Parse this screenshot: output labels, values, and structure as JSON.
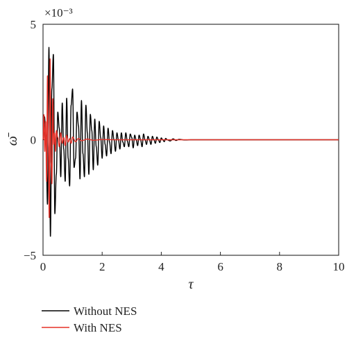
{
  "chart_data": {
    "type": "line",
    "scale_label": "×10⁻³",
    "xlabel": "τ",
    "ylabel": "ω̄",
    "xlim": [
      0,
      10
    ],
    "ylim": [
      -5,
      5
    ],
    "xticks": [
      "0",
      "2",
      "4",
      "6",
      "8",
      "10"
    ],
    "yticks": [
      "5",
      "0",
      "−5"
    ],
    "legend_position": "below",
    "series": [
      {
        "name": "Without NES",
        "color": "#000000",
        "description": "damped oscillation, dominant period about 0.2",
        "values": [
          [
            0.0,
            0.0
          ],
          [
            0.05,
            1.0
          ],
          [
            0.1,
            0.2
          ],
          [
            0.15,
            -2.8
          ],
          [
            0.2,
            4.0
          ],
          [
            0.25,
            -4.2
          ],
          [
            0.3,
            2.2
          ],
          [
            0.35,
            3.7
          ],
          [
            0.4,
            -3.2
          ],
          [
            0.45,
            -1.5
          ],
          [
            0.5,
            1.2
          ],
          [
            0.55,
            0.5
          ],
          [
            0.6,
            -1.6
          ],
          [
            0.65,
            1.6
          ],
          [
            0.7,
            -0.4
          ],
          [
            0.75,
            -1.8
          ],
          [
            0.8,
            1.8
          ],
          [
            0.85,
            -0.8
          ],
          [
            0.9,
            -2.0
          ],
          [
            0.95,
            1.5
          ],
          [
            1.0,
            2.2
          ],
          [
            1.05,
            -1.2
          ],
          [
            1.1,
            -0.8
          ],
          [
            1.15,
            1.2
          ],
          [
            1.2,
            0.6
          ],
          [
            1.25,
            -1.7
          ],
          [
            1.3,
            1.7
          ],
          [
            1.35,
            -0.6
          ],
          [
            1.4,
            -1.6
          ],
          [
            1.45,
            1.5
          ],
          [
            1.5,
            0.3
          ],
          [
            1.55,
            -1.5
          ],
          [
            1.6,
            1.1
          ],
          [
            1.65,
            0.4
          ],
          [
            1.7,
            -1.3
          ],
          [
            1.75,
            0.9
          ],
          [
            1.8,
            -0.3
          ],
          [
            1.85,
            -1.1
          ],
          [
            1.9,
            0.8
          ],
          [
            1.95,
            0.1
          ],
          [
            2.0,
            -0.8
          ],
          [
            2.05,
            0.6
          ],
          [
            2.1,
            -0.2
          ],
          [
            2.15,
            -0.7
          ],
          [
            2.2,
            0.5
          ],
          [
            2.25,
            -0.1
          ],
          [
            2.3,
            -0.6
          ],
          [
            2.35,
            0.4
          ],
          [
            2.4,
            0.0
          ],
          [
            2.45,
            -0.5
          ],
          [
            2.5,
            0.3
          ],
          [
            2.55,
            0.0
          ],
          [
            2.6,
            -0.4
          ],
          [
            2.65,
            0.3
          ],
          [
            2.7,
            -0.1
          ],
          [
            2.75,
            -0.3
          ],
          [
            2.8,
            0.3
          ],
          [
            2.85,
            -0.05
          ],
          [
            2.9,
            -0.3
          ],
          [
            2.95,
            0.25
          ],
          [
            3.0,
            0.1
          ],
          [
            3.05,
            -0.35
          ],
          [
            3.1,
            0.2
          ],
          [
            3.15,
            0.0
          ],
          [
            3.2,
            -0.25
          ],
          [
            3.25,
            0.2
          ],
          [
            3.3,
            0.0
          ],
          [
            3.35,
            -0.3
          ],
          [
            3.4,
            0.25
          ],
          [
            3.45,
            0.0
          ],
          [
            3.5,
            -0.2
          ],
          [
            3.55,
            0.15
          ],
          [
            3.6,
            0.0
          ],
          [
            3.65,
            -0.2
          ],
          [
            3.7,
            0.15
          ],
          [
            3.75,
            0.0
          ],
          [
            3.8,
            -0.15
          ],
          [
            3.85,
            0.12
          ],
          [
            3.9,
            0.0
          ],
          [
            3.95,
            -0.12
          ],
          [
            4.0,
            0.08
          ],
          [
            4.05,
            0.0
          ],
          [
            4.1,
            -0.08
          ],
          [
            4.15,
            0.06
          ],
          [
            4.2,
            0.0
          ],
          [
            4.3,
            -0.05
          ],
          [
            4.4,
            0.04
          ],
          [
            4.5,
            -0.03
          ],
          [
            4.6,
            0.02
          ],
          [
            4.8,
            -0.01
          ],
          [
            5.0,
            0.0
          ],
          [
            10.0,
            0.0
          ]
        ]
      },
      {
        "name": "With NES",
        "color": "#e53027",
        "description": "faster-decaying oscillation",
        "values": [
          [
            0.0,
            0.0
          ],
          [
            0.03,
            1.1
          ],
          [
            0.06,
            -0.5
          ],
          [
            0.09,
            0.8
          ],
          [
            0.12,
            -1.8
          ],
          [
            0.15,
            2.8
          ],
          [
            0.18,
            -0.2
          ],
          [
            0.21,
            -3.4
          ],
          [
            0.24,
            3.5
          ],
          [
            0.27,
            -1.0
          ],
          [
            0.3,
            -1.9
          ],
          [
            0.33,
            1.8
          ],
          [
            0.36,
            -0.2
          ],
          [
            0.39,
            0.3
          ],
          [
            0.42,
            -0.5
          ],
          [
            0.45,
            0.4
          ],
          [
            0.5,
            0.1
          ],
          [
            0.55,
            -0.3
          ],
          [
            0.6,
            0.3
          ],
          [
            0.65,
            -0.15
          ],
          [
            0.7,
            0.1
          ],
          [
            0.75,
            -0.25
          ],
          [
            0.8,
            0.2
          ],
          [
            0.85,
            -0.1
          ],
          [
            0.9,
            0.05
          ],
          [
            0.95,
            -0.15
          ],
          [
            1.0,
            0.12
          ],
          [
            1.1,
            -0.08
          ],
          [
            1.2,
            0.06
          ],
          [
            1.3,
            -0.04
          ],
          [
            1.5,
            0.03
          ],
          [
            1.7,
            -0.02
          ],
          [
            2.0,
            0.01
          ],
          [
            2.5,
            0.0
          ],
          [
            10.0,
            0.0
          ]
        ]
      }
    ]
  }
}
